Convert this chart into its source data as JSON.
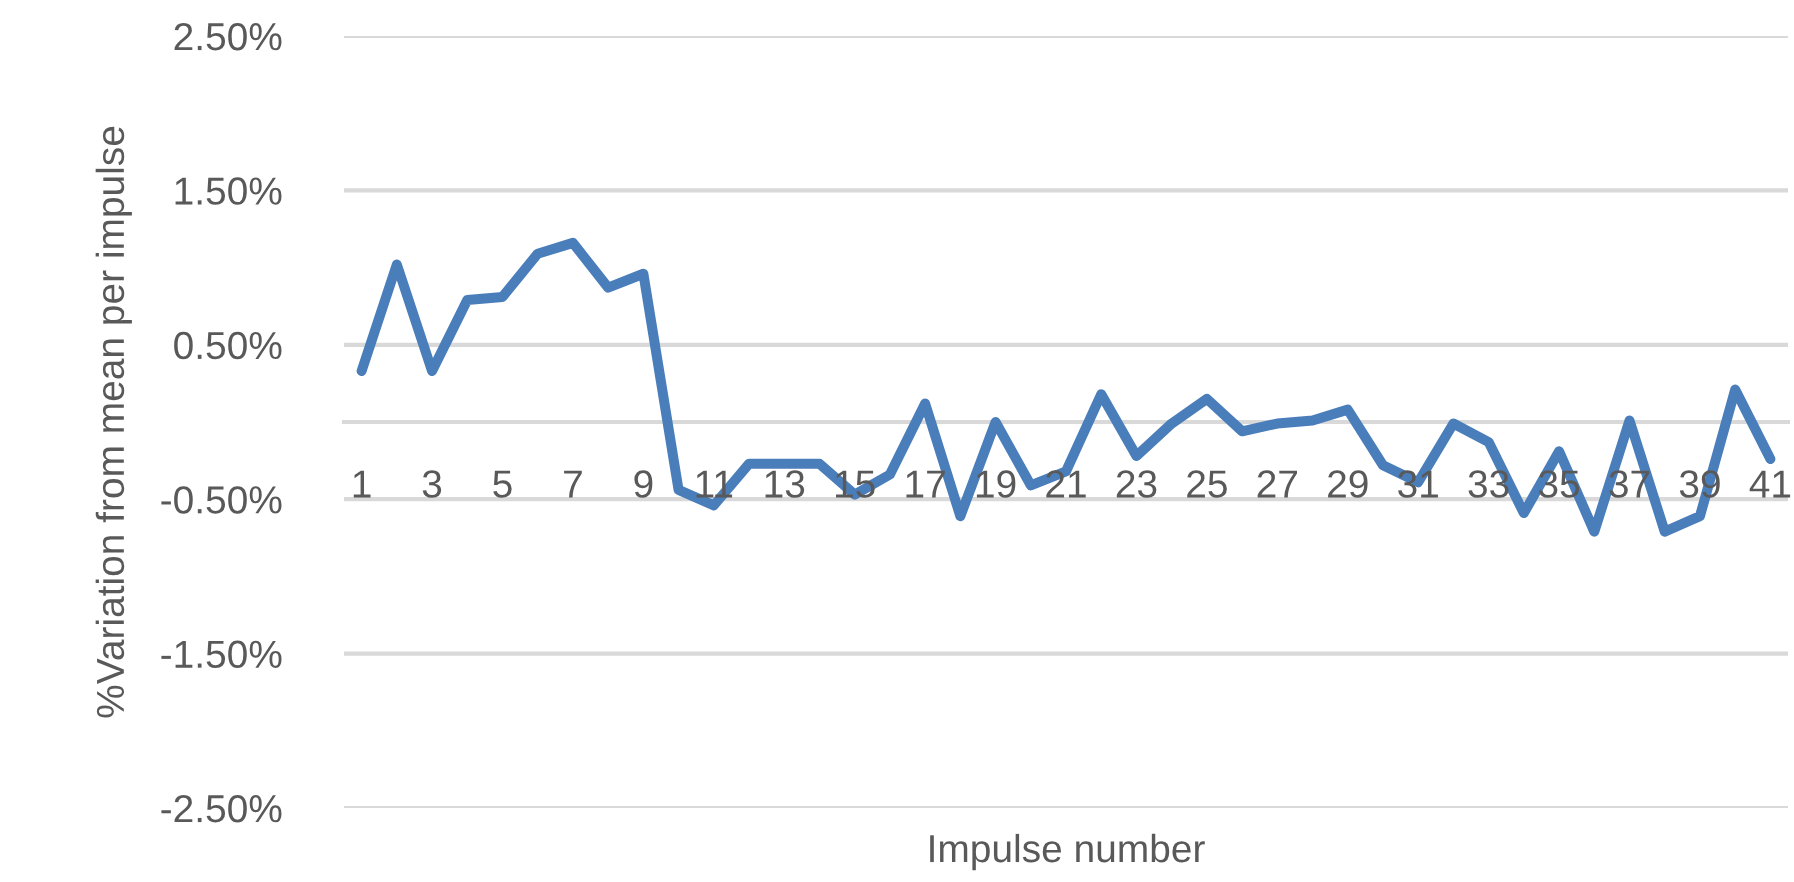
{
  "chart_data": {
    "type": "line",
    "xlabel": "Impulse number",
    "ylabel": "%Variation from mean per impulse",
    "categories": [
      "1",
      null,
      "3",
      null,
      "5",
      null,
      "7",
      null,
      "9",
      null,
      "11",
      null,
      "13",
      null,
      "15",
      null,
      "17",
      null,
      "19",
      null,
      "21",
      null,
      "23",
      null,
      "25",
      null,
      "27",
      null,
      "29",
      null,
      "31",
      null,
      "33",
      null,
      "35",
      null,
      "37",
      null,
      "39",
      null,
      "41"
    ],
    "series": [
      {
        "color": "#4a7ebb",
        "values": [
          0.33,
          1.02,
          0.33,
          0.79,
          0.81,
          1.09,
          1.16,
          0.87,
          0.96,
          -0.44,
          -0.54,
          -0.27,
          -0.27,
          -0.27,
          -0.47,
          -0.34,
          0.12,
          -0.61,
          0.0,
          -0.41,
          -0.32,
          0.18,
          -0.22,
          -0.01,
          0.15,
          -0.06,
          -0.01,
          0.01,
          0.08,
          -0.28,
          -0.39,
          -0.01,
          -0.13,
          -0.59,
          -0.19,
          -0.71,
          0.01,
          -0.71,
          -0.61,
          0.21,
          -0.24
        ]
      }
    ],
    "ylim": [
      -2.5,
      2.5
    ],
    "yticks": [
      {
        "value": -2.5,
        "label": "-2.50%"
      },
      {
        "value": -1.5,
        "label": "-1.50%"
      },
      {
        "value": -0.5,
        "label": "-0.50%"
      },
      {
        "value": 0.5,
        "label": "0.50%"
      },
      {
        "value": 1.5,
        "label": "1.50%"
      },
      {
        "value": 2.5,
        "label": "2.50%"
      }
    ],
    "grid": "y",
    "line_style": "solid"
  }
}
